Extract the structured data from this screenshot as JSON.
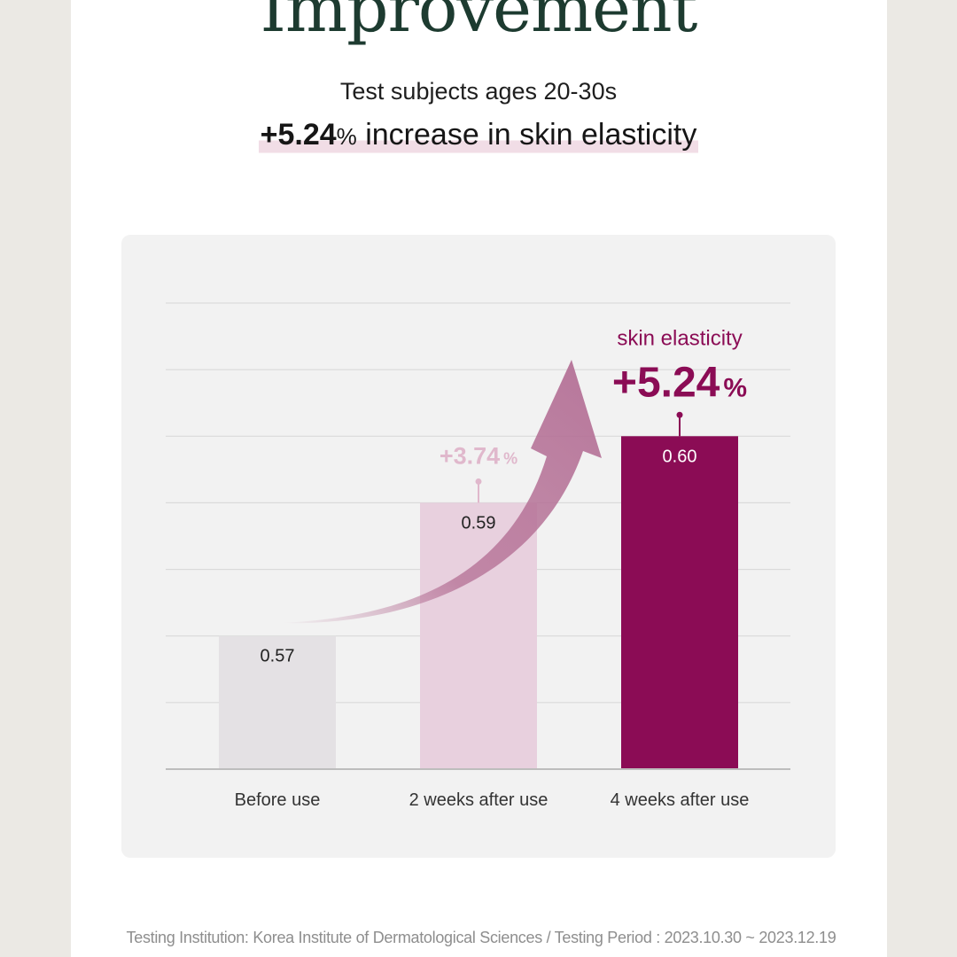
{
  "header": {
    "headline": "Improvement",
    "subtitle": "Test subjects ages 20-30s",
    "highlight_sign_value": "+5.24",
    "highlight_unit": "%",
    "highlight_text": " increase in skin elasticity"
  },
  "chart_data": {
    "type": "bar",
    "categories": [
      "Before use",
      "2 weeks after use",
      "4 weeks after use"
    ],
    "values": [
      0.57,
      0.59,
      0.6
    ],
    "value_labels": [
      "0.57",
      "0.59",
      "0.60"
    ],
    "bar_colors": [
      "#e4e1e4",
      "#e8d0de",
      "#8b0c55"
    ],
    "ylim": [
      0.55,
      0.62
    ],
    "grid": true,
    "annotations": [
      {
        "category": "2 weeks after use",
        "value": "+3.74",
        "unit": "%",
        "color": "#e0b8cc"
      },
      {
        "category": "4 weeks after use",
        "label": "skin elasticity",
        "value": "+5.24",
        "unit": "%",
        "color": "#8b0c55"
      }
    ]
  },
  "footer": {
    "note": "Testing Institution: Korea Institute of Dermatological Sciences / Testing Period : 2023.10.30 ~ 2023.12.19"
  },
  "colors": {
    "headline": "#1d3b30",
    "accent": "#8b0c55",
    "highlight_band": "#f1dde6",
    "background": "#ebe9e4"
  }
}
